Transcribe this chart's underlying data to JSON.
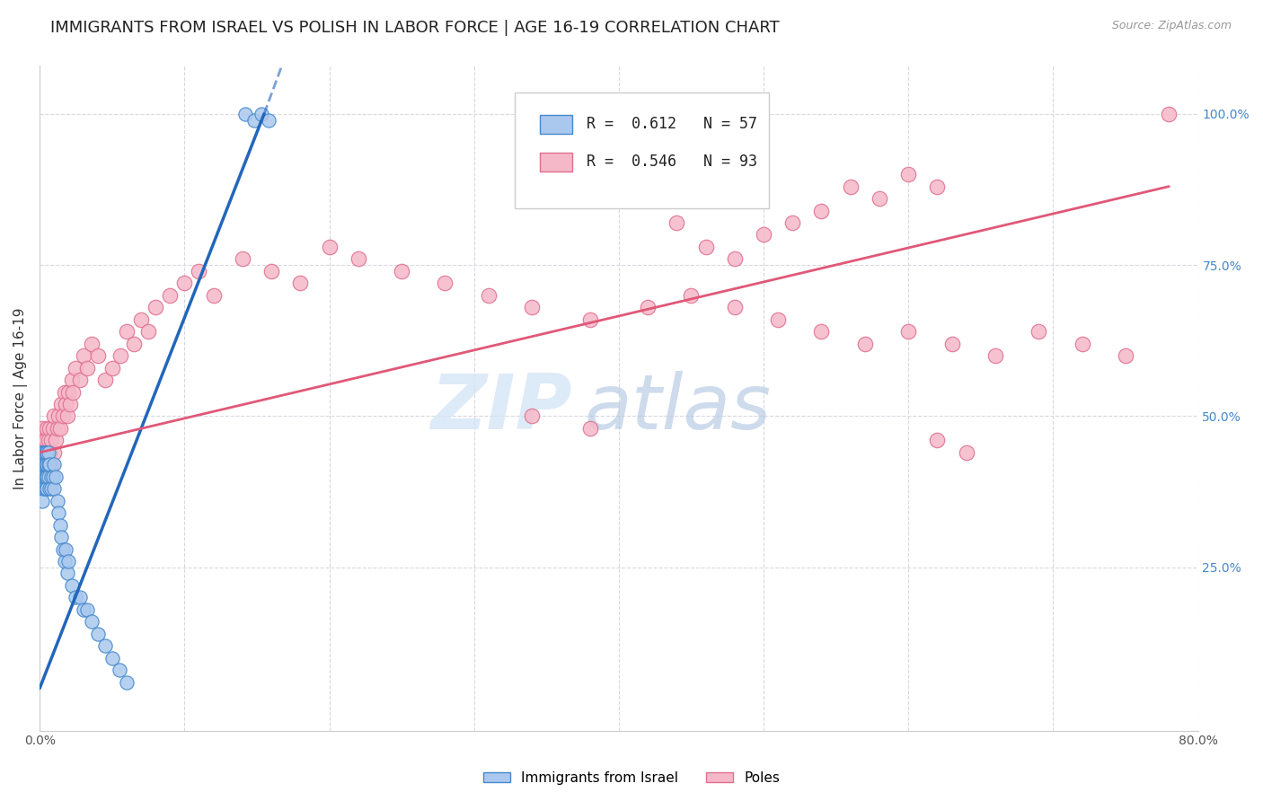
{
  "title": "IMMIGRANTS FROM ISRAEL VS POLISH IN LABOR FORCE | AGE 16-19 CORRELATION CHART",
  "source": "Source: ZipAtlas.com",
  "ylabel": "In Labor Force | Age 16-19",
  "xlim": [
    0.0,
    0.8
  ],
  "ylim": [
    -0.02,
    1.08
  ],
  "israel_R": 0.612,
  "israel_N": 57,
  "polish_R": 0.546,
  "polish_N": 93,
  "israel_color": "#aac8ee",
  "israel_edge_color": "#4488cc",
  "israel_line_color": "#2266bb",
  "polish_color": "#f5b8c8",
  "polish_edge_color": "#e07090",
  "polish_line_color": "#e05878",
  "watermark": "ZIPatlas",
  "watermark_color": "#d0e4f8",
  "background_color": "#ffffff",
  "grid_color": "#d8d8e0",
  "title_fontsize": 13,
  "axis_label_fontsize": 11,
  "tick_fontsize": 10,
  "right_tick_color": "#4488cc",
  "israel_x": [
    0.001,
    0.001,
    0.001,
    0.002,
    0.002,
    0.002,
    0.002,
    0.002,
    0.003,
    0.003,
    0.003,
    0.003,
    0.003,
    0.004,
    0.004,
    0.004,
    0.004,
    0.005,
    0.005,
    0.005,
    0.005,
    0.005,
    0.006,
    0.006,
    0.006,
    0.007,
    0.007,
    0.008,
    0.008,
    0.009,
    0.01,
    0.01,
    0.011,
    0.012,
    0.013,
    0.014,
    0.015,
    0.016,
    0.017,
    0.018,
    0.019,
    0.02,
    0.022,
    0.025,
    0.028,
    0.03,
    0.033,
    0.036,
    0.04,
    0.045,
    0.05,
    0.055,
    0.06,
    0.142,
    0.148,
    0.153,
    0.158
  ],
  "israel_y": [
    0.42,
    0.44,
    0.4,
    0.42,
    0.44,
    0.38,
    0.4,
    0.36,
    0.42,
    0.44,
    0.4,
    0.38,
    0.44,
    0.4,
    0.42,
    0.38,
    0.44,
    0.4,
    0.42,
    0.38,
    0.44,
    0.4,
    0.42,
    0.4,
    0.44,
    0.38,
    0.42,
    0.4,
    0.38,
    0.4,
    0.38,
    0.42,
    0.4,
    0.36,
    0.34,
    0.32,
    0.3,
    0.28,
    0.26,
    0.28,
    0.24,
    0.26,
    0.22,
    0.2,
    0.2,
    0.18,
    0.18,
    0.16,
    0.14,
    0.12,
    0.1,
    0.08,
    0.06,
    1.0,
    0.99,
    1.0,
    0.99
  ],
  "polish_x": [
    0.001,
    0.001,
    0.002,
    0.002,
    0.002,
    0.003,
    0.003,
    0.003,
    0.004,
    0.004,
    0.004,
    0.005,
    0.005,
    0.005,
    0.006,
    0.006,
    0.007,
    0.007,
    0.008,
    0.008,
    0.009,
    0.01,
    0.01,
    0.011,
    0.012,
    0.013,
    0.014,
    0.015,
    0.016,
    0.017,
    0.018,
    0.019,
    0.02,
    0.021,
    0.022,
    0.023,
    0.025,
    0.028,
    0.03,
    0.033,
    0.036,
    0.04,
    0.045,
    0.05,
    0.056,
    0.06,
    0.065,
    0.07,
    0.075,
    0.08,
    0.09,
    0.1,
    0.11,
    0.12,
    0.14,
    0.16,
    0.18,
    0.2,
    0.22,
    0.25,
    0.28,
    0.31,
    0.34,
    0.38,
    0.42,
    0.45,
    0.48,
    0.51,
    0.54,
    0.57,
    0.6,
    0.63,
    0.66,
    0.69,
    0.72,
    0.75,
    0.34,
    0.38,
    0.62,
    0.64,
    0.4,
    0.42,
    0.44,
    0.46,
    0.48,
    0.5,
    0.52,
    0.54,
    0.56,
    0.58,
    0.6,
    0.62,
    0.78
  ],
  "polish_y": [
    0.44,
    0.46,
    0.4,
    0.48,
    0.44,
    0.42,
    0.46,
    0.44,
    0.42,
    0.46,
    0.44,
    0.4,
    0.48,
    0.44,
    0.42,
    0.46,
    0.44,
    0.48,
    0.42,
    0.46,
    0.48,
    0.44,
    0.5,
    0.46,
    0.48,
    0.5,
    0.48,
    0.52,
    0.5,
    0.54,
    0.52,
    0.5,
    0.54,
    0.52,
    0.56,
    0.54,
    0.58,
    0.56,
    0.6,
    0.58,
    0.62,
    0.6,
    0.56,
    0.58,
    0.6,
    0.64,
    0.62,
    0.66,
    0.64,
    0.68,
    0.7,
    0.72,
    0.74,
    0.7,
    0.76,
    0.74,
    0.72,
    0.78,
    0.76,
    0.74,
    0.72,
    0.7,
    0.68,
    0.66,
    0.68,
    0.7,
    0.68,
    0.66,
    0.64,
    0.62,
    0.64,
    0.62,
    0.6,
    0.64,
    0.62,
    0.6,
    0.5,
    0.48,
    0.46,
    0.44,
    0.86,
    0.88,
    0.82,
    0.78,
    0.76,
    0.8,
    0.82,
    0.84,
    0.88,
    0.86,
    0.9,
    0.88,
    1.0
  ],
  "israel_line_x0": 0.0,
  "israel_line_y0": 0.05,
  "israel_line_x1": 0.155,
  "israel_line_y1": 1.0,
  "polish_line_x0": 0.0,
  "polish_line_y0": 0.44,
  "polish_line_x1": 0.78,
  "polish_line_y1": 0.88
}
